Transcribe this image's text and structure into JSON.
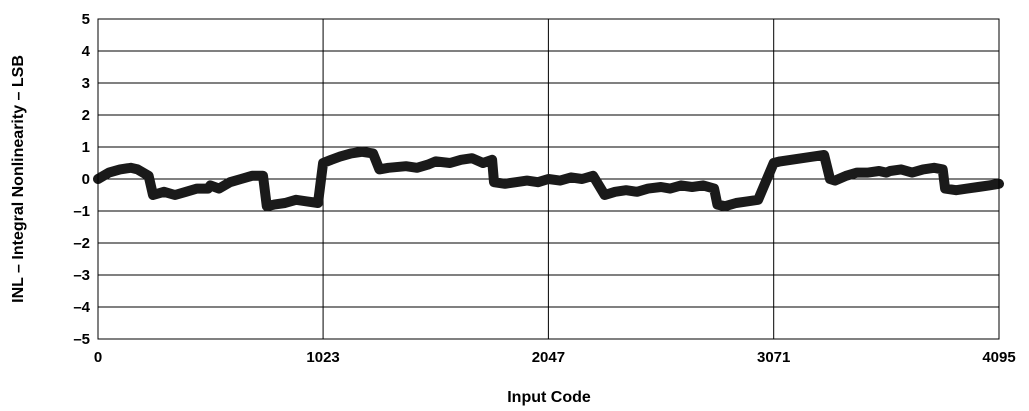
{
  "chart_data": {
    "type": "line",
    "xlabel": "Input Code",
    "ylabel": "INL – Integral Nonlinearity – LSB",
    "xlim": [
      0,
      4095
    ],
    "ylim": [
      -5,
      5
    ],
    "x_ticks": [
      0,
      1023,
      2047,
      3071,
      4095
    ],
    "x_tick_labels": [
      "0",
      "1023",
      "2047",
      "3071",
      "4095"
    ],
    "y_ticks": [
      5,
      4,
      3,
      2,
      1,
      0,
      -1,
      -2,
      -3,
      -4,
      -5
    ],
    "y_tick_labels": [
      "5",
      "4",
      "3",
      "2",
      "1",
      "0",
      "–1",
      "–2",
      "–3",
      "–4",
      "–5"
    ],
    "grid": true,
    "series": [
      {
        "color": "#1a1a1a",
        "x": [
          0,
          50,
          100,
          150,
          180,
          230,
          250,
          300,
          350,
          400,
          450,
          500,
          511,
          550,
          600,
          650,
          700,
          750,
          767,
          800,
          850,
          900,
          950,
          1000,
          1023,
          1060,
          1100,
          1150,
          1200,
          1250,
          1279,
          1320,
          1400,
          1450,
          1500,
          1535,
          1600,
          1650,
          1700,
          1750,
          1791,
          1800,
          1850,
          1900,
          1950,
          2000,
          2047,
          2100,
          2150,
          2200,
          2250,
          2303,
          2350,
          2400,
          2450,
          2500,
          2559,
          2600,
          2650,
          2700,
          2750,
          2800,
          2815,
          2850,
          2900,
          2950,
          3000,
          3071,
          3100,
          3150,
          3200,
          3250,
          3300,
          3327,
          3350,
          3400,
          3450,
          3500,
          3550,
          3583,
          3600,
          3650,
          3700,
          3750,
          3800,
          3839,
          3850,
          3900,
          3950,
          4000,
          4050,
          4095
        ],
        "y": [
          0.0,
          0.2,
          0.3,
          0.35,
          0.3,
          0.1,
          -0.5,
          -0.4,
          -0.5,
          -0.4,
          -0.3,
          -0.3,
          -0.2,
          -0.3,
          -0.1,
          0.0,
          0.1,
          0.1,
          -0.85,
          -0.8,
          -0.75,
          -0.65,
          -0.7,
          -0.75,
          0.5,
          0.6,
          0.7,
          0.8,
          0.85,
          0.8,
          0.3,
          0.35,
          0.4,
          0.35,
          0.45,
          0.55,
          0.5,
          0.6,
          0.65,
          0.5,
          0.6,
          -0.1,
          -0.15,
          -0.1,
          -0.05,
          -0.1,
          0.0,
          -0.05,
          0.05,
          0.0,
          0.1,
          -0.5,
          -0.4,
          -0.35,
          -0.4,
          -0.3,
          -0.25,
          -0.3,
          -0.2,
          -0.25,
          -0.2,
          -0.3,
          -0.8,
          -0.85,
          -0.75,
          -0.7,
          -0.65,
          0.5,
          0.55,
          0.6,
          0.65,
          0.7,
          0.75,
          0.0,
          -0.05,
          0.1,
          0.2,
          0.2,
          0.25,
          0.2,
          0.25,
          0.3,
          0.2,
          0.3,
          0.35,
          0.3,
          -0.3,
          -0.35,
          -0.3,
          -0.25,
          -0.2,
          -0.15
        ]
      }
    ]
  }
}
